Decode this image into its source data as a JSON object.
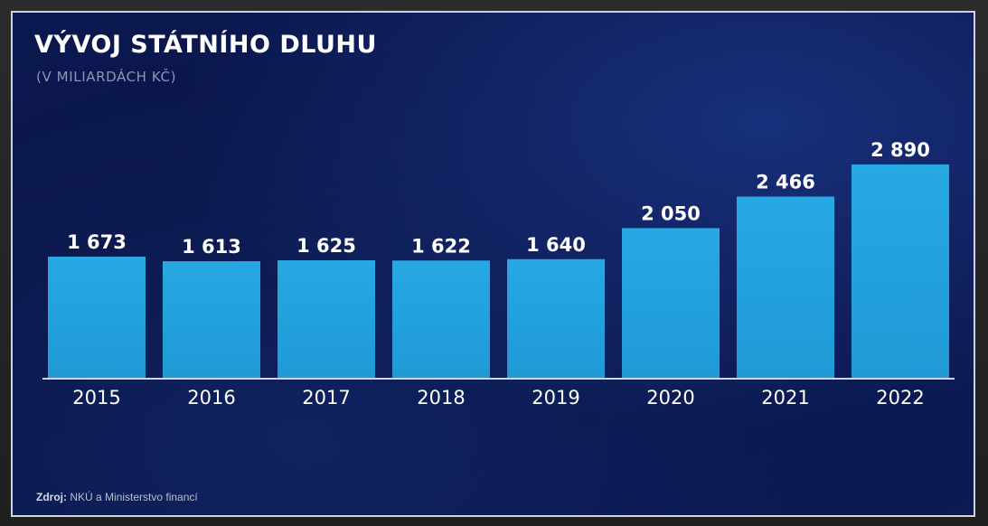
{
  "title": "VÝVOJ STÁTNÍHO DLUHU",
  "subtitle": "(V MILIARDÁCH KČ)",
  "source": {
    "label": "Zdroj:",
    "text": "NKÚ a Ministerstvo financí"
  },
  "colors": {
    "bar": "#1f9ad6",
    "bar_top": "#27a8e3",
    "background": "#0b1850",
    "text": "#ffffff",
    "baseline": "#cfd6e6"
  },
  "chart_data": {
    "type": "bar",
    "categories": [
      "2015",
      "2016",
      "2017",
      "2018",
      "2019",
      "2020",
      "2021",
      "2022"
    ],
    "values": [
      1673,
      1613,
      1625,
      1622,
      1640,
      2050,
      2466,
      2890
    ],
    "value_labels": [
      "1 673",
      "1 613",
      "1 625",
      "1 622",
      "1 640",
      "2 050",
      "2 466",
      "2 890"
    ],
    "title": "VÝVOJ STÁTNÍHO DLUHU",
    "subtitle": "(V MILIARDÁCH KČ)",
    "xlabel": "",
    "ylabel": "",
    "y_axis_visible": false,
    "grid": false,
    "legend": "none"
  }
}
